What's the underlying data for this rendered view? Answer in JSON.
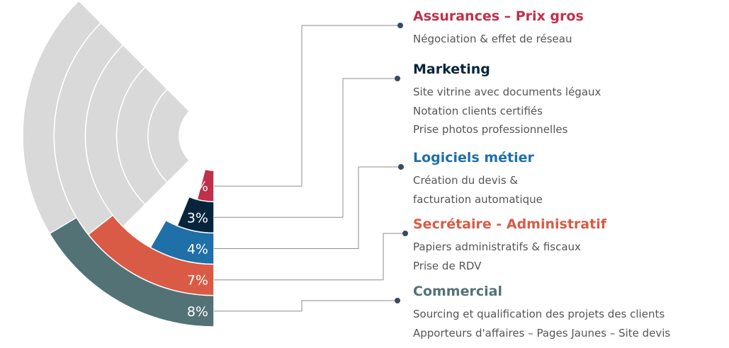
{
  "chart_data": {
    "type": "radial-bar",
    "background_color": "#d9d9d9",
    "series": [
      {
        "label": "2%",
        "value": 2,
        "color": "#c0304a",
        "title": "Assurances – Prix gros",
        "lines": [
          "Négociation & effet de réseau"
        ]
      },
      {
        "label": "3%",
        "value": 3,
        "color": "#06253d",
        "title": "Marketing",
        "lines": [
          "Site vitrine avec documents légaux",
          "Notation clients certifiés",
          "Prise photos professionnelles"
        ]
      },
      {
        "label": "4%",
        "value": 4,
        "color": "#1f6fa8",
        "title": "Logiciels métier",
        "lines": [
          "Création du devis &",
          "facturation automatique"
        ]
      },
      {
        "label": "7%",
        "value": 7,
        "color": "#d95b45",
        "title": "Secrétaire - Administratif",
        "lines": [
          "Papiers administratifs & fiscaux",
          "Prise de RDV"
        ]
      },
      {
        "label": "8%",
        "value": 8,
        "color": "#527276",
        "title": "Commercial",
        "lines": [
          "Sourcing et qualification des projets des clients",
          "Apporteurs d'affaires – Pages Jaunes – Site devis"
        ]
      }
    ],
    "connector_color": "#8c8c8c",
    "dot_color": "#3a4a5e",
    "label_text_color": "#ffffff"
  }
}
